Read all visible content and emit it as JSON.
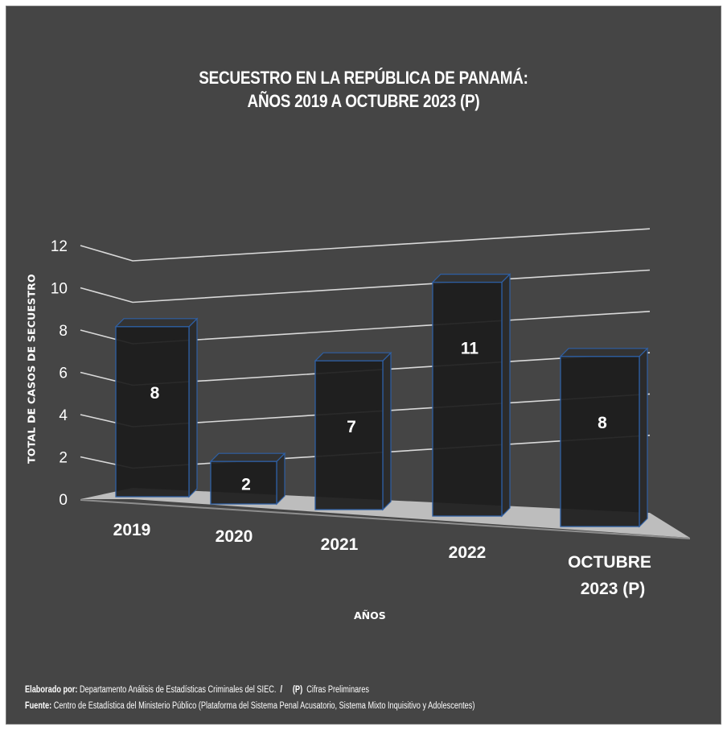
{
  "chart_data": {
    "type": "bar",
    "title": "SECUESTRO EN LA REPÚBLICA DE PANAMÁ:",
    "subtitle": "AÑOS 2019 A OCTUBRE 2023 (P)",
    "xlabel": "AÑOS",
    "ylabel": "TOTAL DE CASOS DE SECUESTRO",
    "categories": [
      "2019",
      "2020",
      "2021",
      "2022",
      "OCTUBRE 2023 (P)"
    ],
    "values": [
      8,
      2,
      7,
      11,
      8
    ],
    "data_labels": [
      "8",
      "2",
      "7",
      "11",
      "8"
    ],
    "yticks": [
      "0",
      "2",
      "4",
      "6",
      "8",
      "10",
      "12"
    ],
    "ylim": [
      0,
      12
    ],
    "grid": true,
    "style": "3d-column",
    "colors": {
      "background": "#454545",
      "bar": "#1c1c1c",
      "bar_edge": "#2e5fa3",
      "floor": "#bdbdbd",
      "grid": "#d9d9d9",
      "text": "#ffffff"
    }
  },
  "footer": {
    "line1_bold": "Elaborado por:",
    "line1_text": " Departamento Análisis de Estadísticas Criminales del SIEC.",
    "line1_sep": "  /     ",
    "line1_p": "(P)",
    "line1_note": "  Cifras Preliminares",
    "line2_bold": "Fuente:",
    "line2_text": " Centro de Estadística del Ministerio Público (Plataforma del Sistema Penal Acusatorio, Sistema Mixto Inquisitivo y Adolescentes)"
  }
}
